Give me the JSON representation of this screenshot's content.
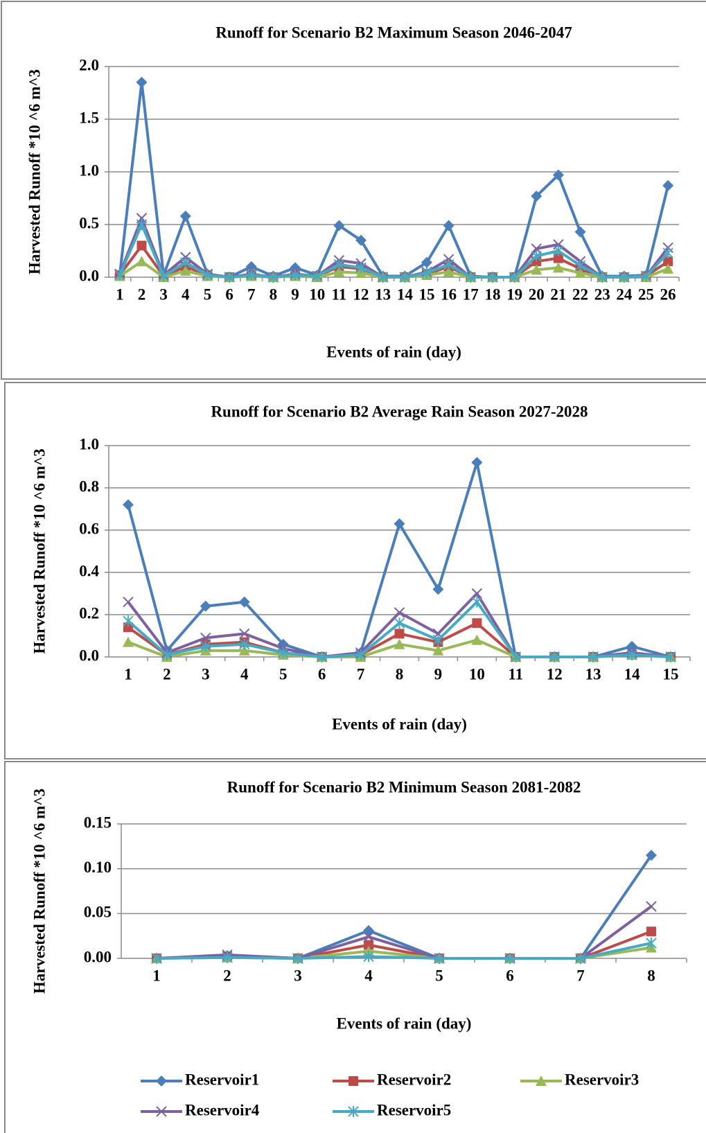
{
  "chart_data": [
    {
      "type": "line",
      "title": "Runoff for Scenario B2  Maximum Season 2046-2047",
      "x_label": "Events of rain (day)",
      "y_label": "Harvested Runoff *10 ^6 m^3",
      "categories": [
        "1",
        "2",
        "3",
        "4",
        "5",
        "6",
        "7",
        "8",
        "9",
        "10",
        "11",
        "12",
        "13",
        "14",
        "15",
        "16",
        "17",
        "18",
        "19",
        "20",
        "21",
        "22",
        "23",
        "24",
        "25",
        "26"
      ],
      "ylim": [
        0,
        2
      ],
      "yticks": [
        {
          "value": 0,
          "label": "0.0"
        },
        0.5,
        {
          "value": 1,
          "label": "1.0"
        },
        1.5,
        {
          "value": 2,
          "label": "2.0"
        }
      ],
      "grid": true,
      "series": [
        {
          "color": "#4a7ebb",
          "marker": "diamond",
          "values": [
            0.02,
            1.85,
            0.02,
            0.58,
            0.03,
            0,
            0.1,
            0.01,
            0.09,
            0.02,
            0.49,
            0.35,
            0.01,
            0.01,
            0.14,
            0.49,
            0.01,
            0,
            0,
            0.77,
            0.97,
            0.43,
            0.01,
            0.01,
            0.02,
            0.87
          ]
        },
        {
          "color": "#be4b48",
          "marker": "square",
          "values": [
            0.02,
            0.3,
            0.01,
            0.1,
            0.02,
            0,
            0.02,
            0,
            0.02,
            0.01,
            0.1,
            0.08,
            0,
            0,
            0.03,
            0.1,
            0,
            0,
            0,
            0.15,
            0.18,
            0.08,
            0,
            0,
            0.01,
            0.15
          ]
        },
        {
          "color": "#98b954",
          "marker": "triangle",
          "values": [
            0.01,
            0.15,
            0,
            0.06,
            0.01,
            0,
            0.01,
            0,
            0.01,
            0,
            0.05,
            0.04,
            0,
            0,
            0.02,
            0.05,
            0,
            0,
            0,
            0.07,
            0.09,
            0.04,
            0,
            0,
            0,
            0.08
          ]
        },
        {
          "color": "#7d60a0",
          "marker": "x",
          "values": [
            0.03,
            0.56,
            0.02,
            0.19,
            0.03,
            0,
            0.03,
            0,
            0.03,
            0.01,
            0.16,
            0.13,
            0,
            0,
            0.05,
            0.17,
            0,
            0,
            0,
            0.27,
            0.31,
            0.15,
            0,
            0,
            0.01,
            0.28
          ]
        },
        {
          "color": "#46aac5",
          "marker": "star",
          "values": [
            0.02,
            0.5,
            0.01,
            0.14,
            0.02,
            0,
            0.02,
            0,
            0.02,
            0.01,
            0.12,
            0.09,
            0,
            0,
            0.04,
            0.12,
            0,
            0,
            0,
            0.2,
            0.25,
            0.11,
            0,
            0,
            0.01,
            0.23
          ]
        }
      ]
    },
    {
      "type": "line",
      "title": "Runoff for Scenario B2 Average Rain Season 2027-2028",
      "x_label": "Events of rain (day)",
      "y_label": "Harvested Runoff *10 ^6 m^3",
      "categories": [
        "1",
        "2",
        "3",
        "4",
        "5",
        "6",
        "7",
        "8",
        "9",
        "10",
        "11",
        "12",
        "13",
        "14",
        "15"
      ],
      "ylim": [
        0,
        1
      ],
      "yticks": [
        {
          "value": 0,
          "label": "0.0"
        },
        0.2,
        0.4,
        0.6,
        0.8,
        {
          "value": 1,
          "label": "1.0"
        }
      ],
      "grid": true,
      "series": [
        {
          "color": "#4a7ebb",
          "marker": "diamond",
          "values": [
            0.72,
            0.03,
            0.24,
            0.26,
            0.06,
            0,
            0.02,
            0.63,
            0.32,
            0.92,
            0,
            0,
            0,
            0.05,
            0
          ]
        },
        {
          "color": "#be4b48",
          "marker": "square",
          "values": [
            0.14,
            0.01,
            0.06,
            0.07,
            0.02,
            0,
            0.01,
            0.11,
            0.07,
            0.16,
            0,
            0,
            0,
            0.01,
            0
          ]
        },
        {
          "color": "#98b954",
          "marker": "triangle",
          "values": [
            0.07,
            0,
            0.03,
            0.03,
            0.01,
            0,
            0,
            0.06,
            0.03,
            0.08,
            0,
            0,
            0,
            0.01,
            0
          ]
        },
        {
          "color": "#7d60a0",
          "marker": "x",
          "values": [
            0.26,
            0.02,
            0.09,
            0.11,
            0.04,
            0,
            0.02,
            0.21,
            0.11,
            0.3,
            0,
            0,
            0,
            0.02,
            0
          ]
        },
        {
          "color": "#46aac5",
          "marker": "star",
          "values": [
            0.17,
            0.01,
            0.05,
            0.06,
            0.02,
            0,
            0.01,
            0.16,
            0.08,
            0.26,
            0,
            0,
            0,
            0.01,
            0
          ]
        }
      ]
    },
    {
      "type": "line",
      "title": "Runoff for Scenario B2 Minimum Season 2081-2082",
      "x_label": "Events of rain (day)",
      "y_label": "Harvested Runoff *10 ^6 m^3",
      "categories": [
        "1",
        "2",
        "3",
        "4",
        "5",
        "6",
        "7",
        "8"
      ],
      "ylim": [
        0,
        0.15
      ],
      "yticks": [
        {
          "value": 0,
          "label": "0.00"
        },
        0.05,
        {
          "value": 0.1,
          "label": "0.10"
        },
        0.15
      ],
      "grid": true,
      "legend": "bottom",
      "series": [
        {
          "name": "Reservoir1",
          "color": "#4a7ebb",
          "marker": "diamond",
          "values": [
            0,
            0.003,
            0,
            0.031,
            0,
            0,
            0,
            0.115
          ]
        },
        {
          "name": "Reservoir2",
          "color": "#be4b48",
          "marker": "square",
          "values": [
            0,
            0.002,
            0,
            0.015,
            0,
            0,
            0,
            0.03
          ]
        },
        {
          "name": "Reservoir3",
          "color": "#98b954",
          "marker": "triangle",
          "values": [
            0,
            0.001,
            0,
            0.008,
            0,
            0,
            0,
            0.012
          ]
        },
        {
          "name": "Reservoir4",
          "color": "#7d60a0",
          "marker": "x",
          "values": [
            0,
            0.004,
            0,
            0.024,
            0,
            0,
            0,
            0.058
          ]
        },
        {
          "name": "Reservoir5",
          "color": "#46aac5",
          "marker": "star",
          "values": [
            0,
            0.001,
            0,
            0.002,
            0,
            0,
            0,
            0.017
          ]
        }
      ]
    }
  ]
}
